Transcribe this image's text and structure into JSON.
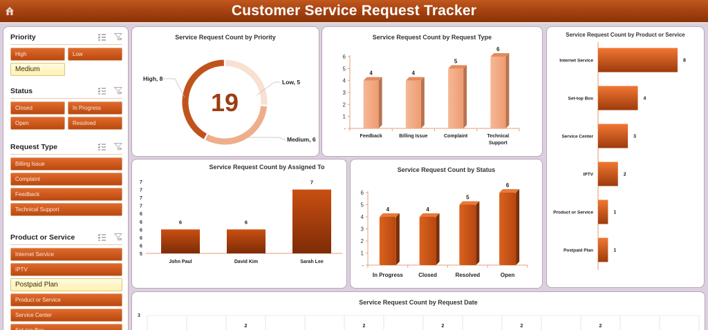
{
  "header": {
    "title": "Customer Service Request Tracker",
    "home_icon": "home-icon"
  },
  "slicers": [
    {
      "title": "Priority",
      "layout": "two",
      "items": [
        {
          "label": "High",
          "selected": false
        },
        {
          "label": "Low",
          "selected": false
        },
        {
          "label": "Medium",
          "selected": true
        }
      ]
    },
    {
      "title": "Status",
      "layout": "two",
      "items": [
        {
          "label": "Closed",
          "selected": false
        },
        {
          "label": "In Progress",
          "selected": false
        },
        {
          "label": "Open",
          "selected": false
        },
        {
          "label": "Resolved",
          "selected": false
        }
      ]
    },
    {
      "title": "Request Type",
      "layout": "one",
      "items": [
        {
          "label": "Billing Issue",
          "selected": false
        },
        {
          "label": "Complaint",
          "selected": false
        },
        {
          "label": "Feedback",
          "selected": false
        },
        {
          "label": "Technical Support",
          "selected": false
        }
      ]
    },
    {
      "title": "Product or Service",
      "layout": "one",
      "items": [
        {
          "label": "Internet Service",
          "selected": false
        },
        {
          "label": "IPTV",
          "selected": false
        },
        {
          "label": "Postpaid Plan",
          "selected": true
        },
        {
          "label": "Product or Service",
          "selected": false
        },
        {
          "label": "Service Center",
          "selected": false
        },
        {
          "label": "Set-top Box",
          "selected": false
        }
      ]
    }
  ],
  "slicer_icons": {
    "multi_select": "multi-select-icon",
    "clear_filter": "clear-filter-icon"
  },
  "colors": {
    "header": "#a3400f",
    "chip": "#d45d20",
    "chip_selected": "#fff3b8",
    "bar_light": "#f2a882",
    "bar_dark": "#c4521a",
    "donut_high": "#c0531c",
    "donut_medium": "#eeae8c",
    "donut_low": "#f8e0d2"
  },
  "chart_data": [
    {
      "id": "priority",
      "type": "pie",
      "title": "Service Request Count by Priority",
      "center_label": "19",
      "categories": [
        "High",
        "Low",
        "Medium"
      ],
      "values": [
        8,
        5,
        6
      ],
      "data_labels": [
        "High, 8",
        "Low, 5",
        "Medium, 6"
      ]
    },
    {
      "id": "request_type",
      "type": "bar",
      "title": "Service Request Count by Request Type",
      "categories": [
        "Feedback",
        "Billing Issue",
        "Complaint",
        "Technical Support"
      ],
      "values": [
        4,
        4,
        5,
        6
      ],
      "yticks": [
        "-",
        "1",
        "2",
        "3",
        "4",
        "5",
        "6"
      ],
      "ylim": [
        0,
        6
      ]
    },
    {
      "id": "product",
      "type": "bar",
      "orientation": "horizontal",
      "title": "Service Request Count by Product or Service",
      "categories": [
        "Internet Service",
        "Set-top Box",
        "Service Center",
        "IPTV",
        "Product or Service",
        "Postpaid Plan"
      ],
      "values": [
        8,
        4,
        3,
        2,
        1,
        1
      ]
    },
    {
      "id": "assigned_to",
      "type": "bar",
      "title": "Service Request Count by Assigned To",
      "categories": [
        "John Paul",
        "David Kim",
        "Sarah Lee"
      ],
      "values": [
        6,
        6,
        7
      ],
      "yticks": [
        "5",
        "6",
        "6",
        "6",
        "6",
        "6",
        "7",
        "7",
        "7",
        "7"
      ],
      "ylim": [
        5.4,
        7.2
      ]
    },
    {
      "id": "status",
      "type": "bar",
      "title": "Service Request Count by Status",
      "categories": [
        "In Progress",
        "Closed",
        "Resolved",
        "Open"
      ],
      "values": [
        4,
        4,
        5,
        6
      ],
      "yticks": [
        "-",
        "1",
        "2",
        "3",
        "4",
        "5",
        "6"
      ],
      "ylim": [
        0,
        6
      ]
    },
    {
      "id": "request_date",
      "type": "bar",
      "title": "Service Request Count by Request Date",
      "yticks_visible": [
        "3"
      ],
      "visible_data_labels": [
        "2",
        "2",
        "2",
        "2",
        "2"
      ]
    }
  ]
}
